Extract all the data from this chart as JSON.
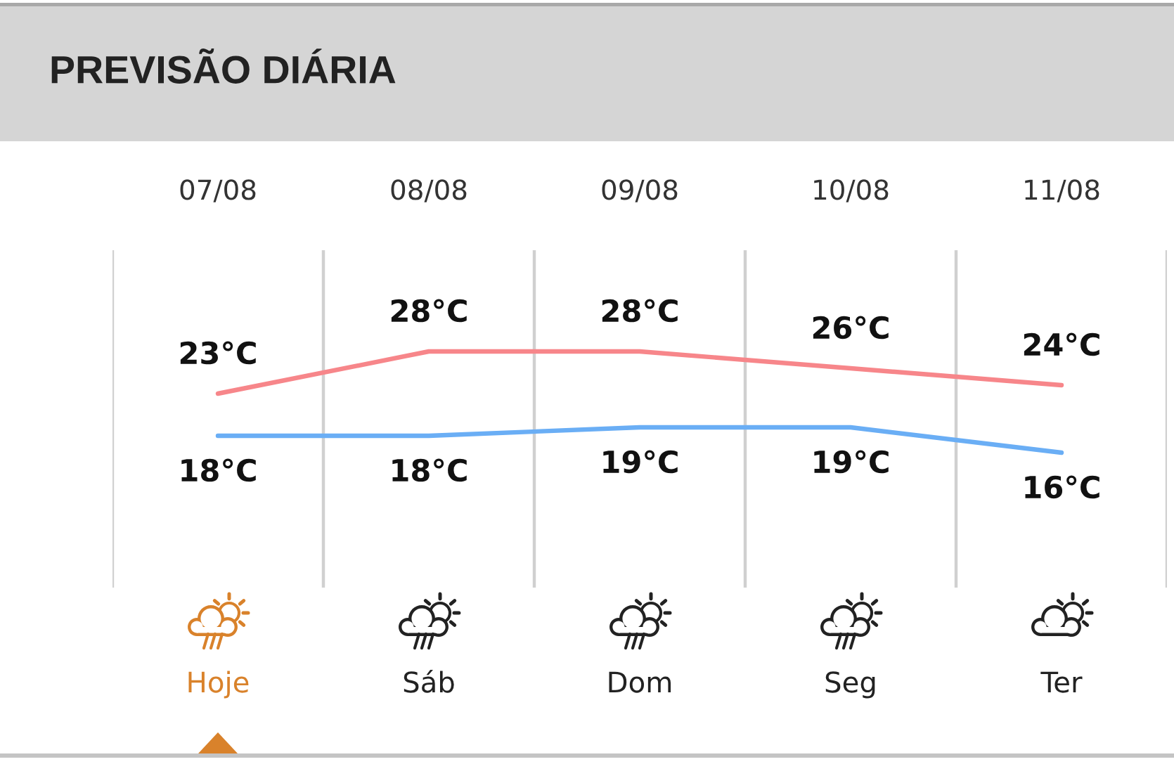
{
  "chart_data": {
    "type": "line",
    "title": "PREVISÃO DIÁRIA",
    "categories": [
      "07/08",
      "08/08",
      "09/08",
      "10/08",
      "11/08"
    ],
    "series": [
      {
        "color": "#f7868a",
        "values": [
          23,
          28,
          28,
          26,
          24
        ],
        "value_labels": [
          "23°C",
          "28°C",
          "28°C",
          "26°C",
          "24°C"
        ]
      },
      {
        "color": "#6aaef5",
        "values": [
          18,
          18,
          19,
          19,
          16
        ],
        "value_labels": [
          "18°C",
          "18°C",
          "19°C",
          "19°C",
          "16°C"
        ]
      }
    ],
    "ylim": [
      0,
      40
    ],
    "tick_labels": "x",
    "grid": "x",
    "line_style": "solid",
    "annotations": [
      "Hoje",
      "Sáb",
      "Dom",
      "Seg",
      "Ter"
    ]
  }
}
